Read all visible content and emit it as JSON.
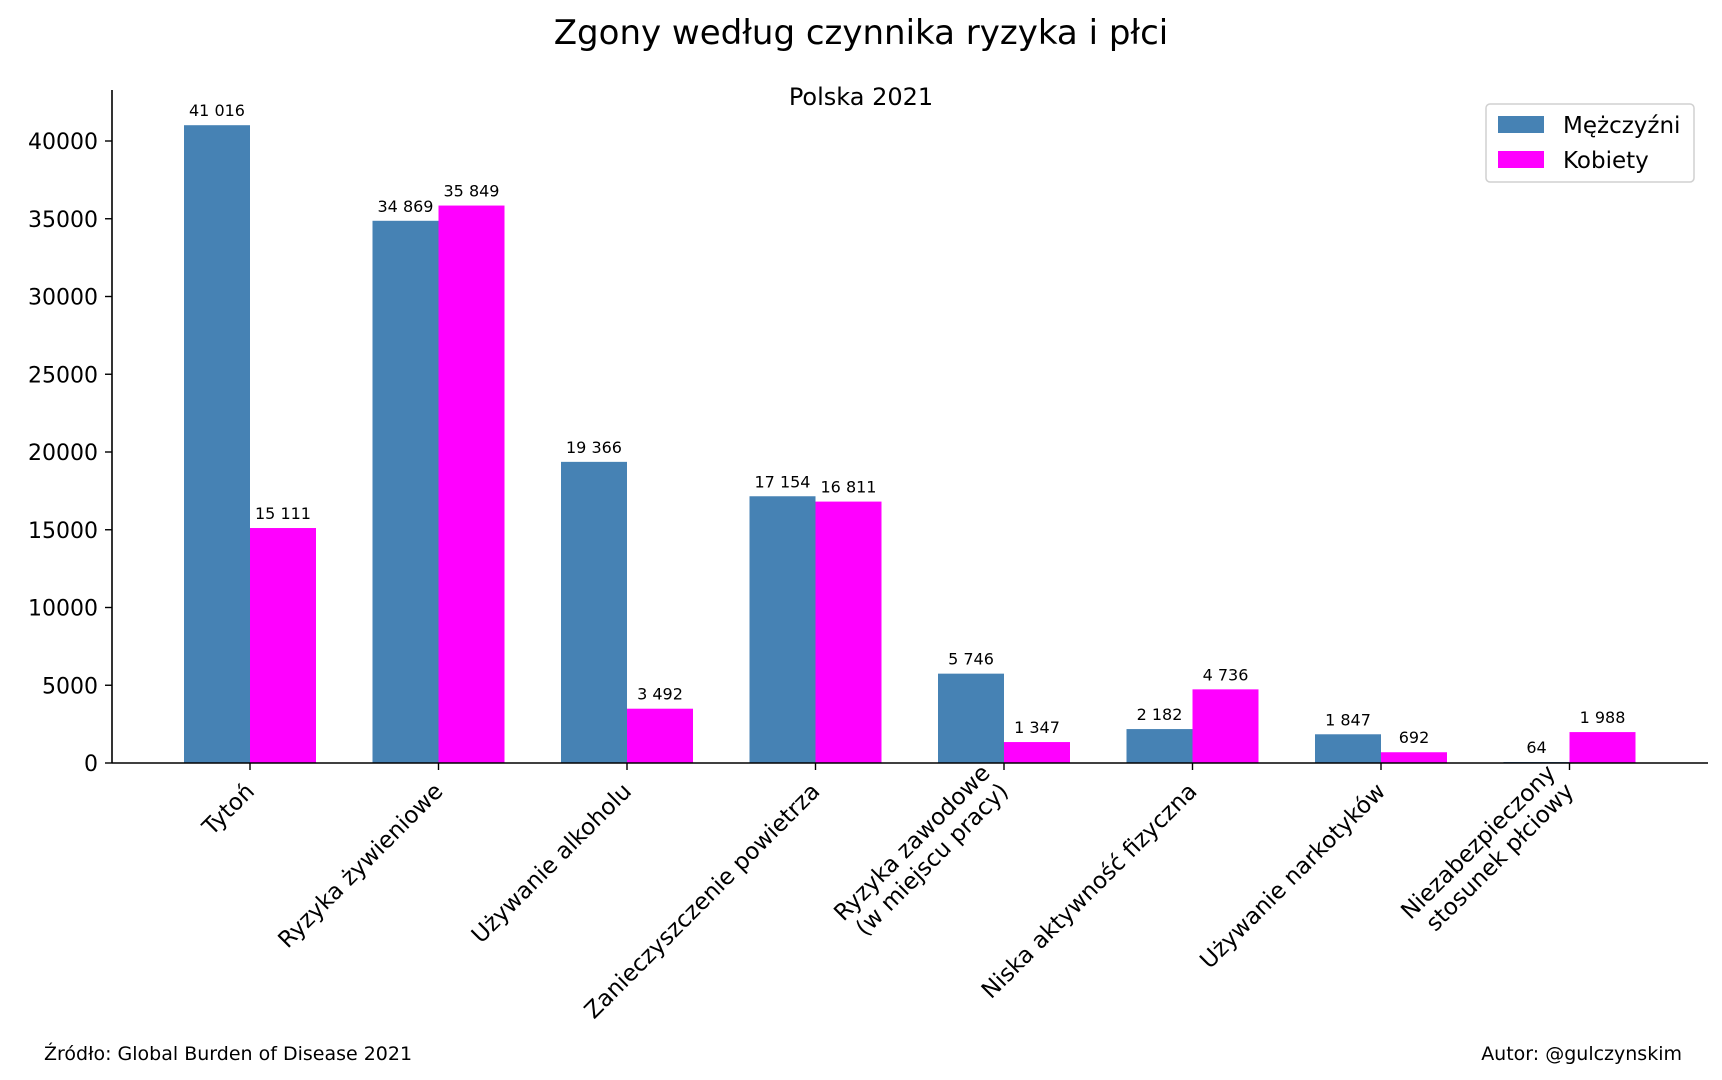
{
  "chart_data": {
    "type": "bar",
    "title": "Zgony według czynnika ryzyka i płci",
    "subtitle": "Polska 2021",
    "categories": [
      [
        "Tytoń"
      ],
      [
        "Ryzyka żywieniowe"
      ],
      [
        "Używanie alkoholu"
      ],
      [
        "Zanieczyszczenie powietrza"
      ],
      [
        "Ryzyka zawodowe",
        "(w miejscu pracy)"
      ],
      [
        "Niska aktywność fizyczna"
      ],
      [
        "Używanie narkotyków"
      ],
      [
        "Niezabezpieczony",
        "stosunek płciowy"
      ]
    ],
    "series": [
      {
        "name": "Mężczyźni",
        "color": "#4682b4",
        "values": [
          41016,
          34869,
          19366,
          17154,
          5746,
          2182,
          1847,
          64
        ],
        "labels": [
          "41 016",
          "34 869",
          "19 366",
          "17 154",
          "5 746",
          "2 182",
          "1 847",
          "64"
        ]
      },
      {
        "name": "Kobiety",
        "color": "#ff00ff",
        "values": [
          15111,
          35849,
          3492,
          16811,
          1347,
          4736,
          692,
          1988
        ],
        "labels": [
          "15 111",
          "35 849",
          "3 492",
          "16 811",
          "1 347",
          "4 736",
          "692",
          "1 988"
        ]
      }
    ],
    "yticks": [
      0,
      5000,
      10000,
      15000,
      20000,
      25000,
      30000,
      35000,
      40000
    ],
    "ylim": [
      0,
      43000
    ],
    "xlabel": "",
    "ylabel": "",
    "grid": false,
    "legend_position": "top-right"
  },
  "footer": {
    "source": "Źródło: Global Burden of Disease 2021",
    "author": "Autor: @gulczynskim"
  }
}
